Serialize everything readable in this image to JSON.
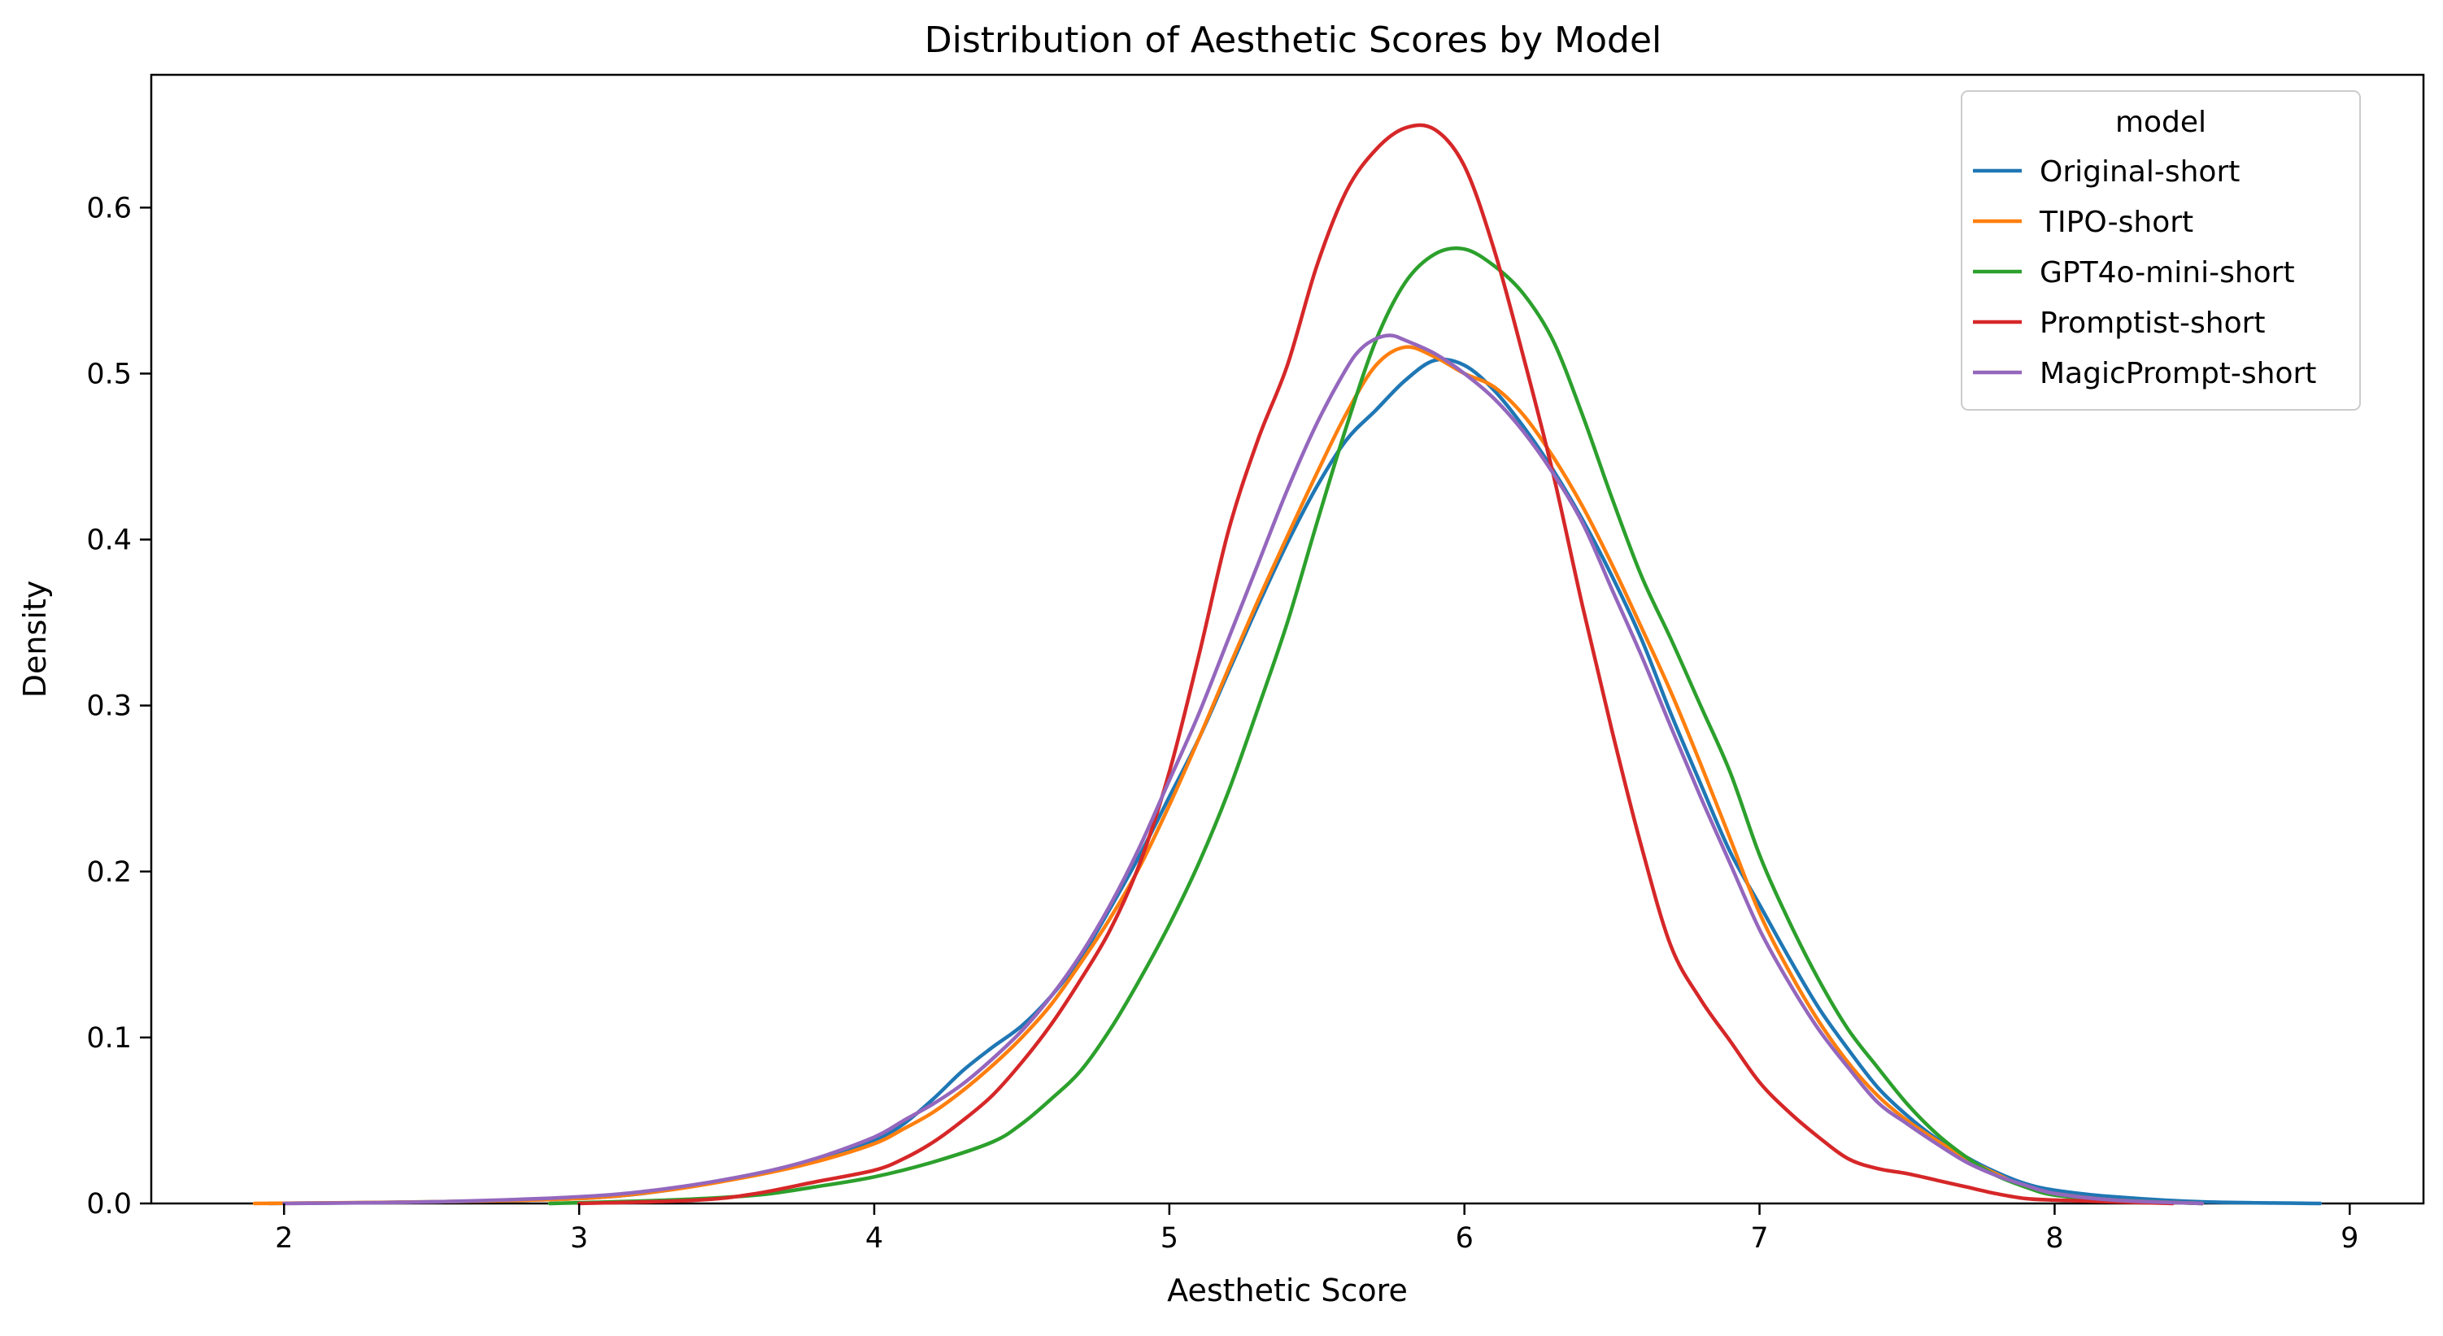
{
  "chart_data": {
    "type": "line",
    "title": "Distribution of Aesthetic Scores by Model",
    "xlabel": "Aesthetic Score",
    "ylabel": "Density",
    "xlim": [
      1.55,
      9.25
    ],
    "ylim": [
      0,
      0.68
    ],
    "xticks": [
      2,
      3,
      4,
      5,
      6,
      7,
      8,
      9
    ],
    "xtick_labels": [
      "2",
      "3",
      "4",
      "5",
      "6",
      "7",
      "8",
      "9"
    ],
    "yticks": [
      0,
      0.1,
      0.2,
      0.3,
      0.4,
      0.5,
      0.6
    ],
    "ytick_labels": [
      "0.0",
      "0.1",
      "0.2",
      "0.3",
      "0.4",
      "0.5",
      "0.6"
    ],
    "grid": false,
    "legend": {
      "title": "model",
      "position": "top-right"
    },
    "series": [
      {
        "name": "Original-short",
        "color": "#1f77b4",
        "x": [
          1.95,
          2.5,
          3.0,
          3.3,
          3.6,
          3.8,
          4.0,
          4.1,
          4.2,
          4.3,
          4.4,
          4.5,
          4.6,
          4.7,
          4.8,
          4.9,
          5.0,
          5.1,
          5.2,
          5.3,
          5.4,
          5.5,
          5.6,
          5.7,
          5.8,
          5.9,
          6.0,
          6.1,
          6.2,
          6.3,
          6.4,
          6.5,
          6.6,
          6.7,
          6.8,
          6.9,
          7.0,
          7.1,
          7.2,
          7.3,
          7.4,
          7.5,
          7.6,
          7.7,
          7.8,
          7.9,
          8.0,
          8.2,
          8.5,
          8.9
        ],
        "y": [
          0.0,
          0.001,
          0.003,
          0.008,
          0.018,
          0.026,
          0.038,
          0.048,
          0.063,
          0.08,
          0.094,
          0.107,
          0.125,
          0.148,
          0.178,
          0.21,
          0.245,
          0.28,
          0.32,
          0.36,
          0.398,
          0.432,
          0.46,
          0.478,
          0.496,
          0.508,
          0.505,
          0.49,
          0.468,
          0.442,
          0.412,
          0.378,
          0.34,
          0.295,
          0.253,
          0.212,
          0.18,
          0.148,
          0.118,
          0.093,
          0.07,
          0.053,
          0.039,
          0.028,
          0.019,
          0.012,
          0.008,
          0.004,
          0.001,
          0.0
        ]
      },
      {
        "name": "TIPO-short",
        "color": "#ff7f0e",
        "x": [
          1.9,
          2.5,
          3.0,
          3.3,
          3.6,
          3.8,
          4.0,
          4.1,
          4.2,
          4.3,
          4.4,
          4.5,
          4.6,
          4.7,
          4.8,
          4.9,
          5.0,
          5.1,
          5.2,
          5.3,
          5.4,
          5.5,
          5.6,
          5.7,
          5.8,
          5.9,
          6.0,
          6.1,
          6.2,
          6.3,
          6.4,
          6.5,
          6.6,
          6.7,
          6.8,
          6.9,
          7.0,
          7.1,
          7.2,
          7.3,
          7.4,
          7.5,
          7.6,
          7.7,
          7.8,
          7.9,
          8.0,
          8.2,
          8.5
        ],
        "y": [
          0.0,
          0.001,
          0.003,
          0.008,
          0.017,
          0.025,
          0.036,
          0.045,
          0.055,
          0.068,
          0.083,
          0.1,
          0.12,
          0.145,
          0.172,
          0.203,
          0.24,
          0.28,
          0.322,
          0.363,
          0.402,
          0.44,
          0.476,
          0.505,
          0.516,
          0.51,
          0.5,
          0.492,
          0.475,
          0.45,
          0.42,
          0.385,
          0.347,
          0.308,
          0.265,
          0.22,
          0.175,
          0.14,
          0.11,
          0.085,
          0.065,
          0.05,
          0.038,
          0.027,
          0.018,
          0.01,
          0.006,
          0.002,
          0.0
        ]
      },
      {
        "name": "GPT4o-mini-short",
        "color": "#2ca02c",
        "x": [
          2.9,
          3.3,
          3.6,
          3.8,
          4.0,
          4.2,
          4.4,
          4.5,
          4.6,
          4.7,
          4.8,
          4.9,
          5.0,
          5.1,
          5.2,
          5.3,
          5.4,
          5.5,
          5.6,
          5.7,
          5.8,
          5.9,
          6.0,
          6.1,
          6.2,
          6.3,
          6.4,
          6.5,
          6.6,
          6.7,
          6.8,
          6.9,
          7.0,
          7.1,
          7.2,
          7.3,
          7.4,
          7.5,
          7.6,
          7.7,
          7.8,
          7.9,
          8.0,
          8.2,
          8.5
        ],
        "y": [
          0.0,
          0.002,
          0.005,
          0.01,
          0.016,
          0.025,
          0.037,
          0.048,
          0.063,
          0.08,
          0.105,
          0.135,
          0.168,
          0.205,
          0.248,
          0.298,
          0.35,
          0.41,
          0.468,
          0.52,
          0.555,
          0.572,
          0.575,
          0.565,
          0.548,
          0.52,
          0.475,
          0.425,
          0.378,
          0.34,
          0.3,
          0.26,
          0.21,
          0.17,
          0.135,
          0.105,
          0.082,
          0.06,
          0.042,
          0.028,
          0.017,
          0.01,
          0.005,
          0.002,
          0.0
        ]
      },
      {
        "name": "Promptist-short",
        "color": "#d62728",
        "x": [
          3.0,
          3.4,
          3.6,
          3.8,
          4.0,
          4.1,
          4.2,
          4.3,
          4.4,
          4.5,
          4.6,
          4.7,
          4.8,
          4.9,
          5.0,
          5.1,
          5.2,
          5.3,
          5.4,
          5.5,
          5.6,
          5.7,
          5.8,
          5.9,
          6.0,
          6.1,
          6.2,
          6.3,
          6.4,
          6.5,
          6.6,
          6.7,
          6.8,
          6.9,
          7.0,
          7.1,
          7.2,
          7.3,
          7.4,
          7.5,
          7.6,
          7.7,
          7.8,
          7.9,
          8.0,
          8.2,
          8.4
        ],
        "y": [
          0.0,
          0.002,
          0.006,
          0.013,
          0.02,
          0.027,
          0.037,
          0.05,
          0.065,
          0.085,
          0.108,
          0.135,
          0.165,
          0.205,
          0.26,
          0.33,
          0.405,
          0.46,
          0.505,
          0.565,
          0.61,
          0.635,
          0.648,
          0.647,
          0.625,
          0.575,
          0.51,
          0.44,
          0.36,
          0.285,
          0.215,
          0.155,
          0.123,
          0.098,
          0.073,
          0.055,
          0.04,
          0.027,
          0.021,
          0.018,
          0.014,
          0.01,
          0.006,
          0.003,
          0.002,
          0.001,
          0.0
        ]
      },
      {
        "name": "MagicPrompt-short",
        "color": "#9467bd",
        "x": [
          2.0,
          2.5,
          3.0,
          3.3,
          3.6,
          3.8,
          4.0,
          4.1,
          4.2,
          4.3,
          4.4,
          4.5,
          4.6,
          4.7,
          4.8,
          4.9,
          5.0,
          5.1,
          5.2,
          5.3,
          5.4,
          5.5,
          5.6,
          5.65,
          5.7,
          5.75,
          5.8,
          5.9,
          6.0,
          6.1,
          6.2,
          6.3,
          6.4,
          6.5,
          6.6,
          6.7,
          6.8,
          6.9,
          7.0,
          7.1,
          7.2,
          7.3,
          7.4,
          7.5,
          7.6,
          7.7,
          7.8,
          7.9,
          8.0,
          8.2,
          8.5
        ],
        "y": [
          0.0,
          0.001,
          0.004,
          0.009,
          0.018,
          0.027,
          0.04,
          0.05,
          0.06,
          0.072,
          0.087,
          0.104,
          0.125,
          0.15,
          0.18,
          0.215,
          0.255,
          0.295,
          0.34,
          0.385,
          0.43,
          0.47,
          0.503,
          0.515,
          0.521,
          0.523,
          0.52,
          0.512,
          0.5,
          0.485,
          0.465,
          0.44,
          0.41,
          0.37,
          0.33,
          0.287,
          0.245,
          0.205,
          0.165,
          0.133,
          0.105,
          0.082,
          0.061,
          0.048,
          0.036,
          0.025,
          0.017,
          0.011,
          0.006,
          0.002,
          0.0
        ]
      }
    ]
  }
}
